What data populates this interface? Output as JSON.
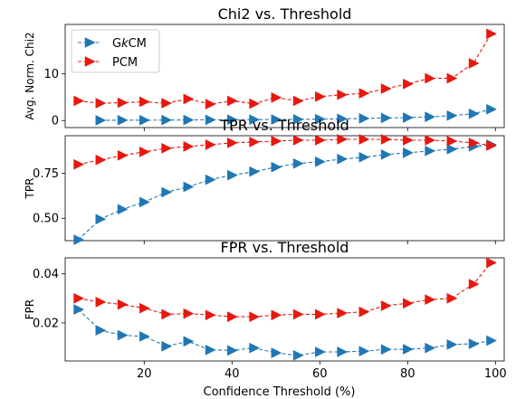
{
  "colors": {
    "gkcm": "#1f77b4",
    "pcm": "#e8180f"
  },
  "chart_data": [
    {
      "type": "line",
      "title": "Chi2 vs. Threshold",
      "ylabel": "Avg. Norm. Chi2",
      "xlabel": "",
      "xlim": [
        2,
        102
      ],
      "ylim": [
        -1.5,
        20.5
      ],
      "yticks": [
        0,
        10
      ],
      "ytick_labels": [
        "0",
        "10"
      ],
      "xticks": [
        20,
        40,
        60,
        80,
        100
      ],
      "xticks_labeled": false,
      "legend": {
        "placement": "top-left",
        "entries": [
          "G$k$CM",
          "PCM"
        ]
      },
      "x": [
        5,
        10,
        15,
        20,
        25,
        30,
        35,
        40,
        45,
        50,
        55,
        60,
        65,
        70,
        75,
        80,
        85,
        90,
        95,
        99
      ],
      "series": [
        {
          "name": "GkCM",
          "x": [
            10,
            15,
            20,
            25,
            30,
            35,
            40,
            45,
            50,
            55,
            60,
            65,
            70,
            75,
            80,
            85,
            90,
            95,
            99
          ],
          "values": [
            0.05,
            0.08,
            0.08,
            0.1,
            0.12,
            0.15,
            0.18,
            0.2,
            0.22,
            0.25,
            0.3,
            0.38,
            0.45,
            0.55,
            0.62,
            0.78,
            1.05,
            1.45,
            2.4
          ]
        },
        {
          "name": "PCM",
          "x": [
            5,
            10,
            15,
            20,
            25,
            30,
            35,
            40,
            45,
            50,
            55,
            60,
            65,
            70,
            75,
            80,
            85,
            90,
            95,
            99
          ],
          "values": [
            4.2,
            3.7,
            3.8,
            4.0,
            3.7,
            4.6,
            3.5,
            4.2,
            3.6,
            4.9,
            4.2,
            5.1,
            5.5,
            5.8,
            6.8,
            7.8,
            9.0,
            9.0,
            12.2,
            18.5
          ]
        }
      ]
    },
    {
      "type": "line",
      "title": "TPR vs. Threshold",
      "ylabel": "TPR",
      "xlabel": "",
      "xlim": [
        2,
        102
      ],
      "ylim": [
        0.375,
        0.96
      ],
      "yticks": [
        0.5,
        0.75
      ],
      "ytick_labels": [
        "0.50",
        "0.75"
      ],
      "xticks": [
        20,
        40,
        60,
        80,
        100
      ],
      "xticks_labeled": false,
      "x": [
        5,
        10,
        15,
        20,
        25,
        30,
        35,
        40,
        45,
        50,
        55,
        60,
        65,
        70,
        75,
        80,
        85,
        90,
        95,
        99
      ],
      "series": [
        {
          "name": "GkCM",
          "values": [
            0.38,
            0.495,
            0.55,
            0.59,
            0.645,
            0.675,
            0.715,
            0.74,
            0.76,
            0.785,
            0.805,
            0.815,
            0.83,
            0.84,
            0.855,
            0.865,
            0.875,
            0.885,
            0.9,
            0.91
          ]
        },
        {
          "name": "PCM",
          "values": [
            0.8,
            0.825,
            0.85,
            0.87,
            0.89,
            0.9,
            0.91,
            0.92,
            0.925,
            0.93,
            0.935,
            0.935,
            0.94,
            0.94,
            0.94,
            0.935,
            0.935,
            0.93,
            0.92,
            0.905
          ]
        }
      ]
    },
    {
      "type": "line",
      "title": "FPR vs. Threshold",
      "ylabel": "FPR",
      "xlabel": "Confidence Threshold (%)",
      "xlim": [
        2,
        102
      ],
      "ylim": [
        0.0045,
        0.0465
      ],
      "yticks": [
        0.02,
        0.04
      ],
      "ytick_labels": [
        "0.02",
        "0.04"
      ],
      "xticks": [
        20,
        40,
        60,
        80,
        100
      ],
      "xtick_labels": [
        "20",
        "40",
        "60",
        "80",
        "100"
      ],
      "xticks_labeled": true,
      "x": [
        5,
        10,
        15,
        20,
        25,
        30,
        35,
        40,
        45,
        50,
        55,
        60,
        65,
        70,
        75,
        80,
        85,
        90,
        95,
        99
      ],
      "series": [
        {
          "name": "GkCM",
          "values": [
            0.0255,
            0.017,
            0.015,
            0.0145,
            0.0105,
            0.0125,
            0.009,
            0.0088,
            0.0098,
            0.0078,
            0.0068,
            0.0082,
            0.0082,
            0.0085,
            0.0092,
            0.0093,
            0.0098,
            0.0112,
            0.0115,
            0.0128
          ]
        },
        {
          "name": "PCM",
          "values": [
            0.03,
            0.0285,
            0.0275,
            0.026,
            0.0235,
            0.0238,
            0.0232,
            0.0225,
            0.0225,
            0.0232,
            0.0235,
            0.0235,
            0.024,
            0.0245,
            0.027,
            0.028,
            0.0295,
            0.03,
            0.0358,
            0.0445
          ]
        }
      ]
    }
  ]
}
